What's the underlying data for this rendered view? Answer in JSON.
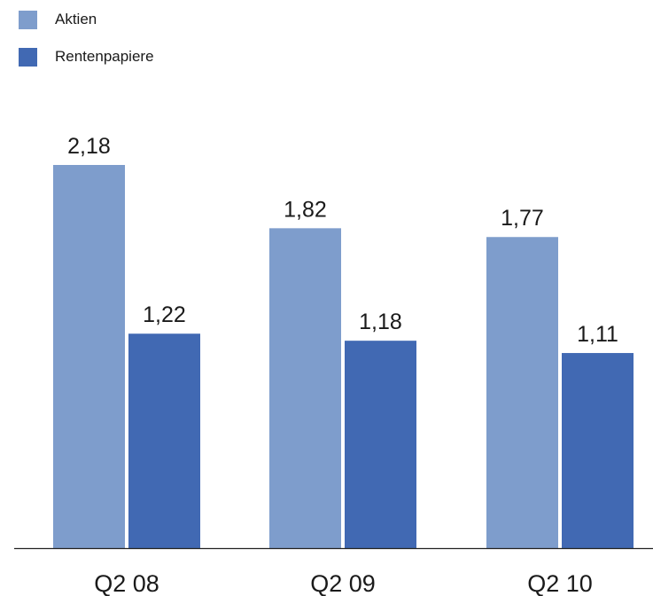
{
  "chart_data": {
    "type": "bar",
    "categories": [
      "Q2 08",
      "Q2 09",
      "Q2 10"
    ],
    "series": [
      {
        "name": "Aktien",
        "values": [
          2.18,
          1.82,
          1.77
        ],
        "labels": [
          "2,18",
          "1,82",
          "1,77"
        ],
        "color": "#7e9dcc"
      },
      {
        "name": "Rentenpapiere",
        "values": [
          1.22,
          1.18,
          1.11
        ],
        "labels": [
          "1,22",
          "1,18",
          "1,11"
        ],
        "color": "#4169b3"
      }
    ],
    "ylim": [
      0,
      2.18
    ],
    "legend_position": "top-left",
    "grid": false
  }
}
